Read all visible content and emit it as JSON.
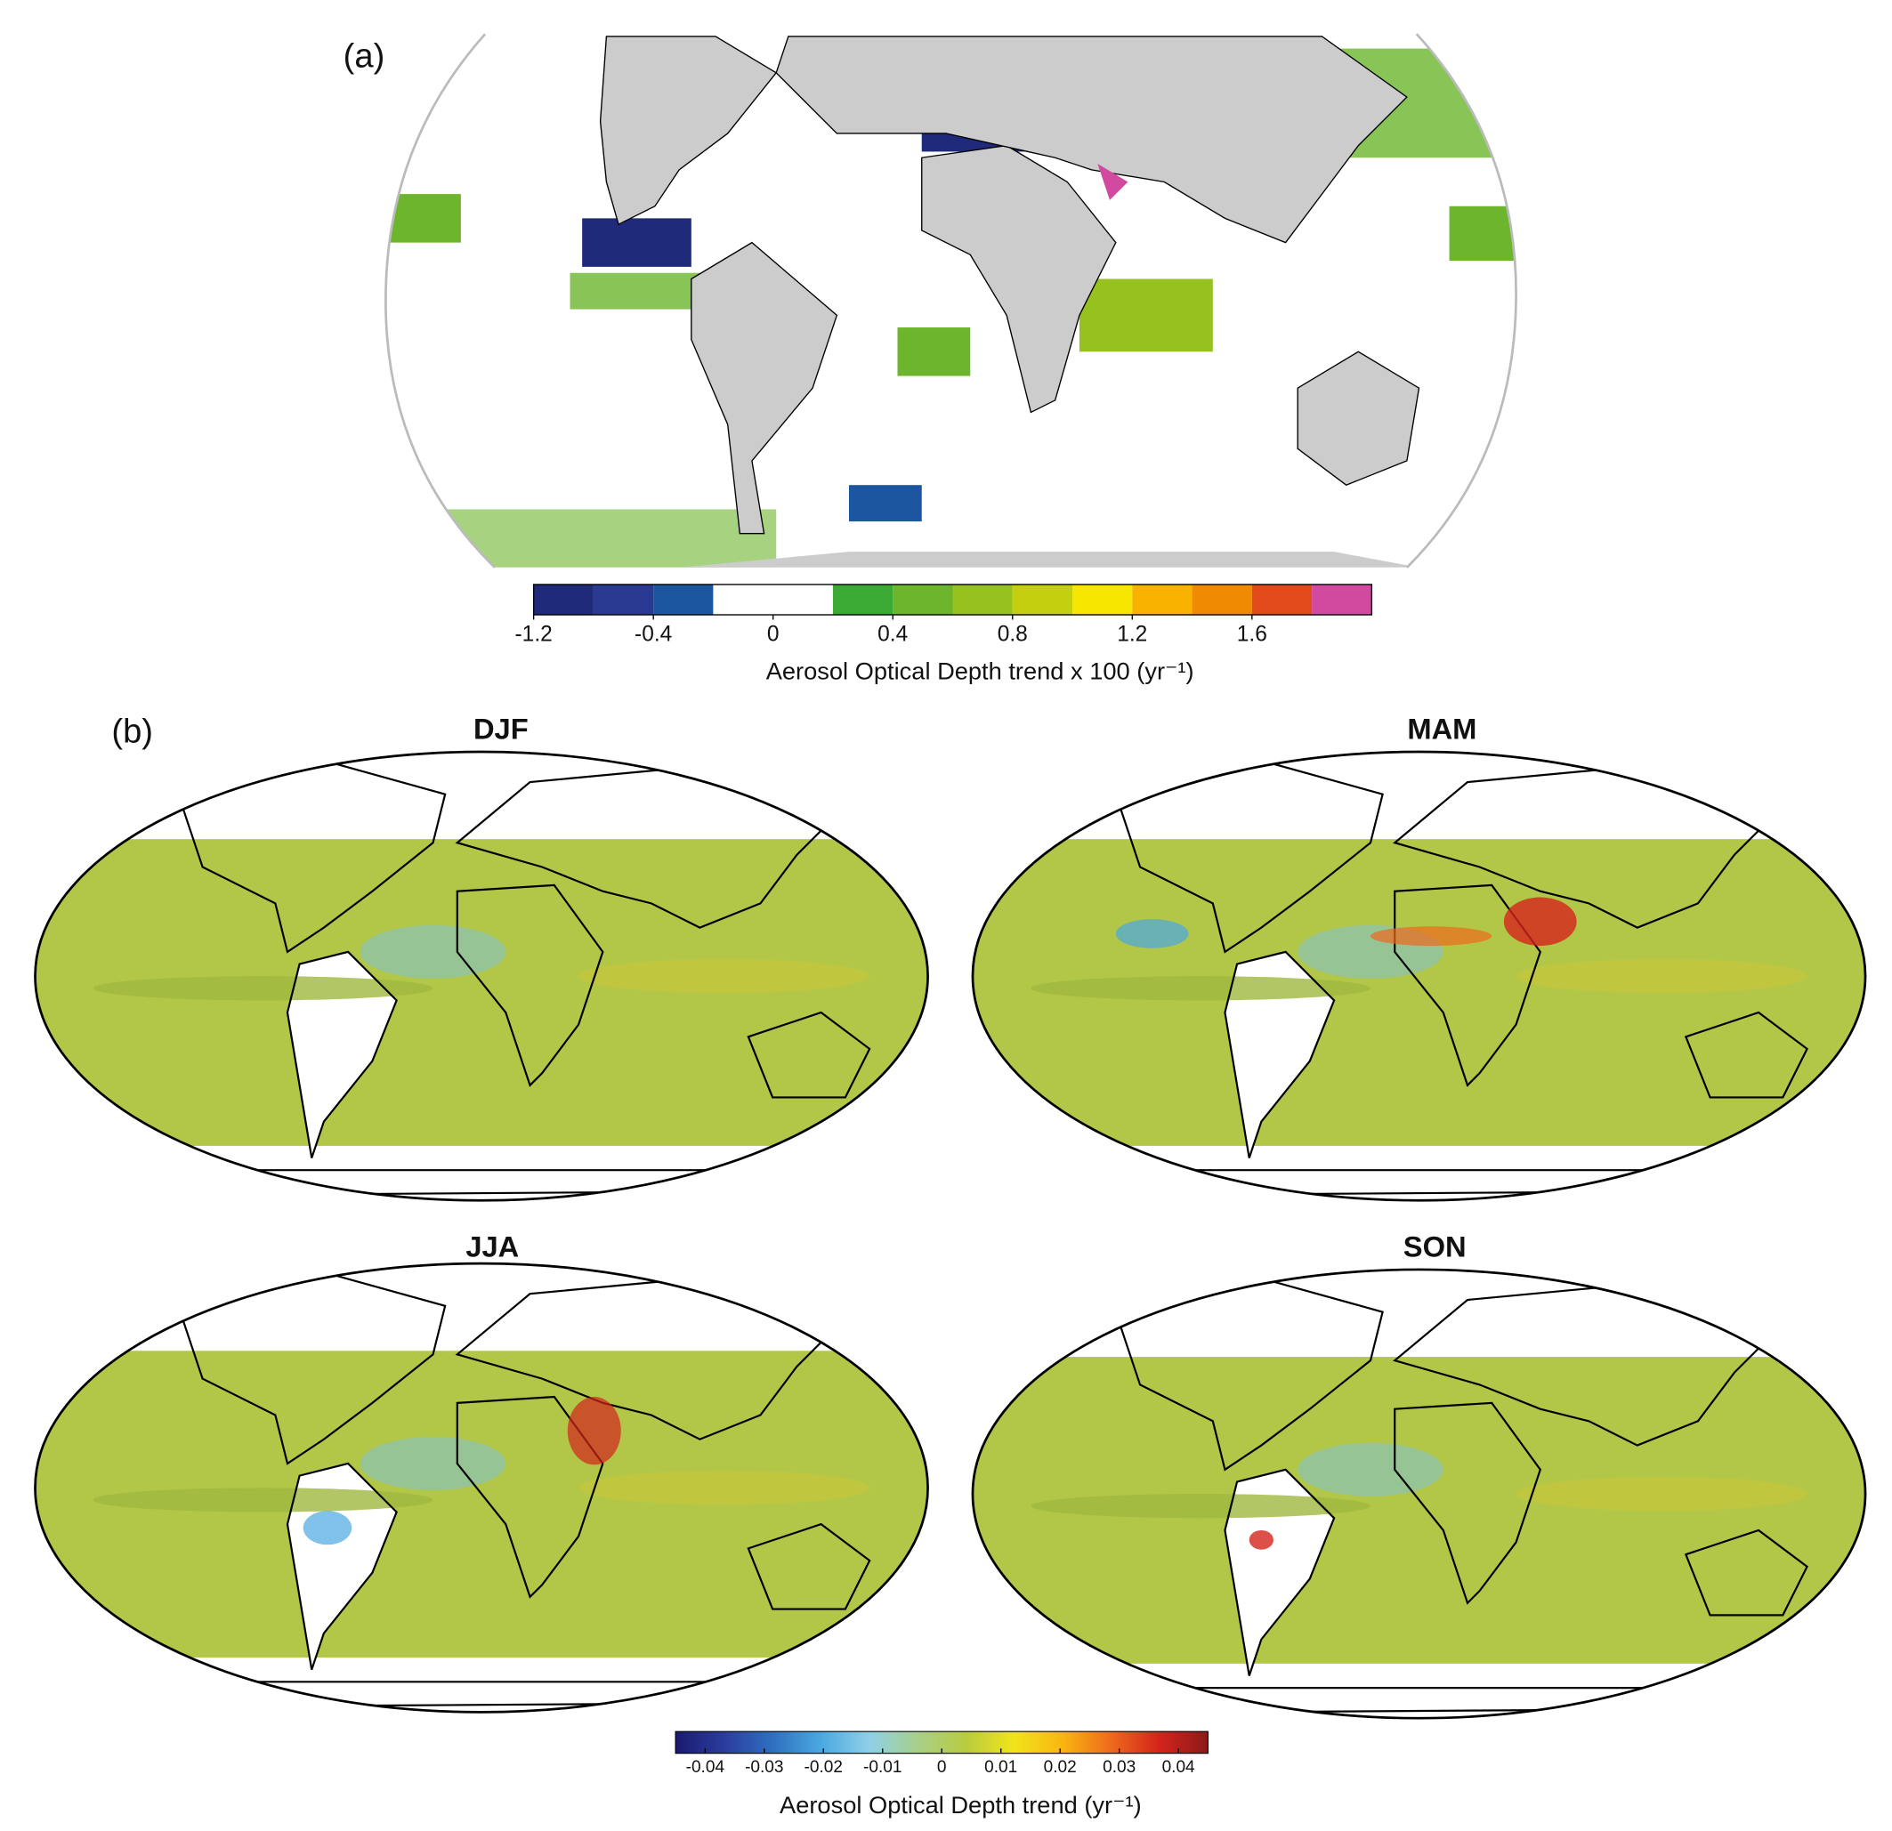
{
  "panel_a": {
    "label": "(a)",
    "colorbar": {
      "edges": [
        -1.2,
        -0.6,
        -0.4,
        -0.2,
        0,
        0.2,
        0.4,
        0.6,
        0.8,
        1.0,
        1.2,
        1.4,
        1.6,
        1.8,
        2.0
      ],
      "colors": [
        "#1f2a7a",
        "#2a3a93",
        "#1d56a0",
        "#ffffff",
        "#ffffff",
        "#3aaa35",
        "#6cb52d",
        "#96c11f",
        "#c3cf0f",
        "#f7e600",
        "#f9b200",
        "#f08a00",
        "#e34a1a",
        "#d24a9f"
      ],
      "ticks": [
        -1.2,
        -0.4,
        0,
        0.4,
        0.8,
        1.2,
        1.6
      ],
      "label": "Aerosol Optical Depth trend x 100 (yr⁻¹)"
    }
  },
  "panel_b": {
    "label": "(b)",
    "maps": [
      {
        "title": "DJF"
      },
      {
        "title": "MAM"
      },
      {
        "title": "JJA"
      },
      {
        "title": "SON"
      }
    ],
    "colorbar": {
      "xlim": [
        -0.045,
        0.045
      ],
      "colors": [
        "#1a1a6e",
        "#2b3c9e",
        "#2f6fc0",
        "#4aa8e0",
        "#8fd0e8",
        "#a8cf8a",
        "#b9cc3e",
        "#f1e41a",
        "#f9b512",
        "#ee6a1c",
        "#d4231c",
        "#8c1a1a"
      ],
      "ticks": [
        -0.04,
        -0.03,
        -0.02,
        -0.01,
        0,
        0.01,
        0.02,
        0.03,
        0.04
      ],
      "label": "Aerosol Optical Depth trend (yr⁻¹)"
    }
  }
}
